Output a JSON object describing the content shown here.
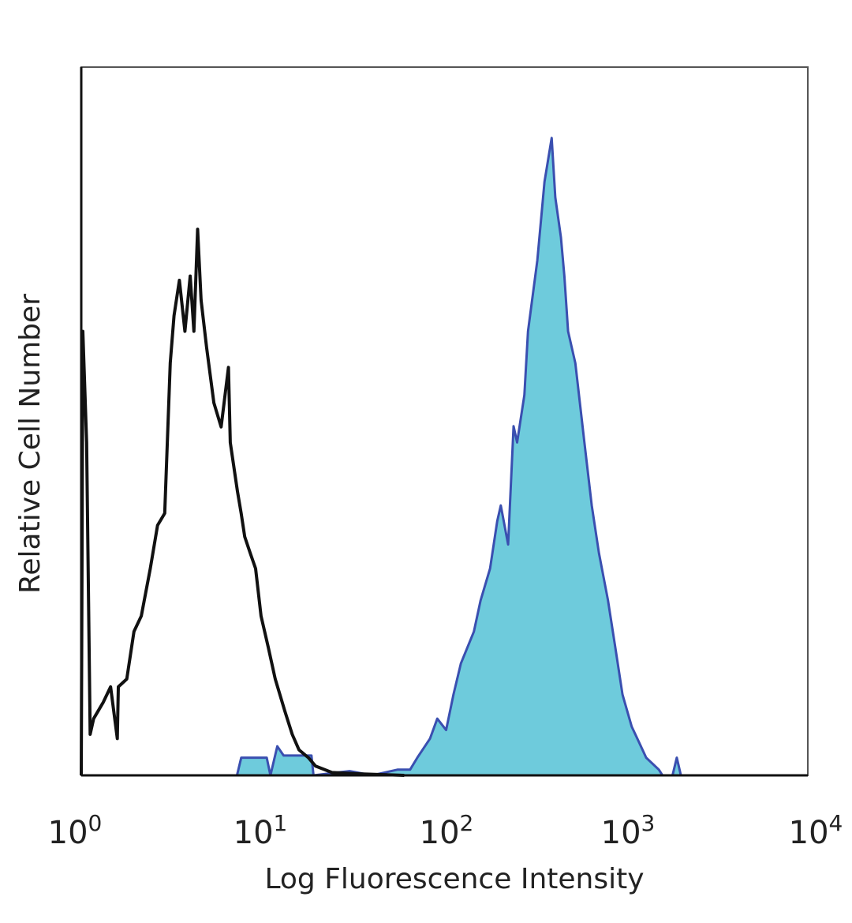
{
  "chart_data": {
    "type": "area",
    "title": "",
    "xlabel": "Log Fluorescence Intensity",
    "ylabel": "Relative Cell Number",
    "xscale": "log",
    "xlim": [
      1,
      10000
    ],
    "ylim": [
      0,
      100
    ],
    "grid": false,
    "legend": "none",
    "x_ticks": [
      {
        "base": "10",
        "exp": "0"
      },
      {
        "base": "10",
        "exp": "1"
      },
      {
        "base": "10",
        "exp": "2"
      },
      {
        "base": "10",
        "exp": "3"
      },
      {
        "base": "10",
        "exp": "4"
      }
    ],
    "series": [
      {
        "style": "outline",
        "color": "#111111",
        "x": [
          1.0,
          1.02,
          1.07,
          1.12,
          1.17,
          1.32,
          1.45,
          1.58,
          1.6,
          1.78,
          1.95,
          2.14,
          2.4,
          2.63,
          2.88,
          3.09,
          3.24,
          3.47,
          3.72,
          3.98,
          4.17,
          4.37,
          4.57,
          4.9,
          5.37,
          5.89,
          6.46,
          6.61,
          7.24,
          7.59,
          7.94,
          8.51,
          9.12,
          9.77,
          10.7,
          11.7,
          13.2,
          14.5,
          15.8,
          17.8,
          19.5,
          24.0,
          35.5,
          60
        ],
        "y": [
          0,
          62.7,
          47.0,
          5.8,
          8.0,
          10.3,
          12.5,
          5.2,
          12.5,
          13.6,
          20.3,
          22.5,
          29.2,
          35.3,
          37.0,
          58.2,
          64.9,
          69.9,
          62.7,
          70.5,
          62.7,
          77.1,
          67.1,
          60.4,
          52.6,
          49.2,
          57.6,
          47.0,
          40.1,
          37.0,
          33.7,
          31.4,
          29.2,
          22.5,
          18.1,
          13.6,
          9.1,
          5.8,
          3.6,
          2.5,
          1.3,
          0.4,
          0.2,
          0
        ]
      },
      {
        "style": "filled",
        "fill": "#6ECBDC",
        "color": "#3A4FB0",
        "x": [
          7.2,
          7.6,
          10.5,
          11,
          12,
          13,
          18.5,
          19,
          30,
          40,
          55,
          64.6,
          70.8,
          83.2,
          91.2,
          102,
          112,
          123,
          145,
          158,
          178,
          195,
          204,
          224,
          240,
          251,
          275,
          288,
          324,
          355,
          389,
          407,
          437,
          457,
          479,
          525,
          589,
          646,
          708,
          794,
          871,
          955,
          1072,
          1175,
          1288,
          1514,
          1585,
          1800,
          1900,
          2000
        ],
        "y": [
          0,
          2.5,
          2.5,
          0,
          4.1,
          2.8,
          2.8,
          0,
          0.6,
          0,
          0.8,
          0.8,
          2.5,
          5.2,
          8.0,
          6.4,
          11.4,
          15.8,
          20.3,
          24.7,
          29.2,
          35.9,
          38.1,
          32.6,
          49.3,
          47.0,
          53.7,
          62.7,
          72.7,
          83.8,
          90.0,
          81.6,
          76.0,
          70.5,
          62.7,
          58.2,
          47.0,
          38.1,
          31.4,
          24.7,
          18.1,
          11.4,
          6.9,
          4.7,
          2.5,
          0.8,
          0,
          0,
          2.5,
          0
        ]
      }
    ]
  }
}
